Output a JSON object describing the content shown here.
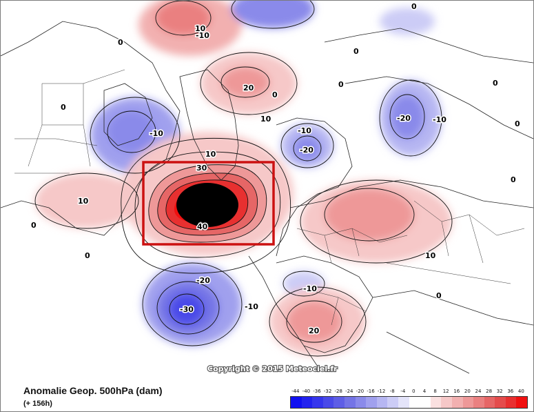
{
  "map": {
    "title": "Anomalie Geop. 500hPa (dam)",
    "subtitle": "(+ 156h)",
    "copyright": "Copyright © 2015 Meteociel.fr",
    "highlight_color": "#cc1111",
    "contour_labels": [
      {
        "id": "lbl-10-a",
        "text": "10"
      },
      {
        "id": "lbl-10-b",
        "text": "-10"
      },
      {
        "id": "lbl-0-a",
        "text": "0"
      },
      {
        "id": "lbl-0-b",
        "text": "0"
      },
      {
        "id": "lbl-0-c",
        "text": "0"
      },
      {
        "id": "lbl-0-d",
        "text": "0"
      },
      {
        "id": "lbl-0-e",
        "text": "0"
      },
      {
        "id": "lbl-0-f",
        "text": "0"
      },
      {
        "id": "lbl-0-g",
        "text": "0"
      },
      {
        "id": "lbl-0-h",
        "text": "0"
      },
      {
        "id": "lbl-20-pole",
        "text": "20"
      },
      {
        "id": "lbl-10-pole",
        "text": "10"
      },
      {
        "id": "lbl-m10-canada",
        "text": "-10"
      },
      {
        "id": "lbl-m10-scand",
        "text": "-10"
      },
      {
        "id": "lbl-m20-scand",
        "text": "-20"
      },
      {
        "id": "lbl-m20-sib",
        "text": "-20"
      },
      {
        "id": "lbl-m10-sib",
        "text": "-10"
      },
      {
        "id": "lbl-10-green",
        "text": "10"
      },
      {
        "id": "lbl-30",
        "text": "30"
      },
      {
        "id": "lbl-40",
        "text": "40"
      },
      {
        "id": "lbl-10-usa",
        "text": "10"
      },
      {
        "id": "lbl-0-usa",
        "text": "0"
      },
      {
        "id": "lbl-0-atl",
        "text": "0"
      },
      {
        "id": "lbl-m20-atl",
        "text": "-20"
      },
      {
        "id": "lbl-m30-atl",
        "text": "-30"
      },
      {
        "id": "lbl-m10-atl",
        "text": "-10"
      },
      {
        "id": "lbl-m10-eur",
        "text": "-10"
      },
      {
        "id": "lbl-20-med",
        "text": "20"
      },
      {
        "id": "lbl-10-asia",
        "text": "10"
      },
      {
        "id": "lbl-0-asia",
        "text": "0"
      },
      {
        "id": "lbl-0-ne",
        "text": "0"
      }
    ]
  },
  "legend": {
    "ticks": [
      "-44",
      "-40",
      "-36",
      "-32",
      "-28",
      "-24",
      "-20",
      "-16",
      "-12",
      "-8",
      "-4",
      "0",
      "4",
      "8",
      "12",
      "16",
      "20",
      "24",
      "28",
      "32",
      "36",
      "40"
    ],
    "colors": [
      "#1010f0",
      "#2222ee",
      "#3636ec",
      "#4a4ae8",
      "#5e5ee6",
      "#7474e6",
      "#8a8aea",
      "#a0a0ee",
      "#b6b6f2",
      "#ccccf6",
      "#e4e4fa",
      "#ffffff",
      "#ffffff",
      "#fae0e0",
      "#f6c8c8",
      "#f2b0b0",
      "#ee9898",
      "#ea8080",
      "#e66666",
      "#e44c4c",
      "#e83030",
      "#f01010"
    ]
  }
}
